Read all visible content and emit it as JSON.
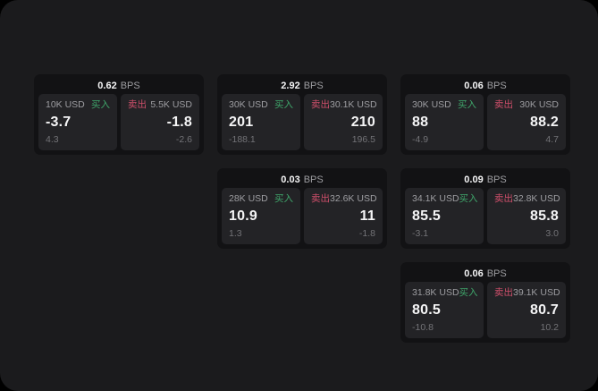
{
  "colors": {
    "outer_background": "#000000",
    "page_bg": "#1b1b1d",
    "card_bg": "#121214",
    "panel_bg": "#232326",
    "buy_green": "#3fa56a",
    "sell_red": "#cf4f6b",
    "text_primary": "#f5f5f6",
    "text_secondary": "#9d9da1",
    "text_tertiary": "#737377"
  },
  "labels": {
    "bps_suffix": "BPS",
    "buy": "买入",
    "sell": "卖出"
  },
  "cards": [
    {
      "bps": "0.62",
      "grid": {
        "row": 1,
        "col": 1
      },
      "buy": {
        "notional": "10K USD",
        "value": "-3.7",
        "delta": "4.3"
      },
      "sell": {
        "notional": "5.5K USD",
        "value": "-1.8",
        "delta": "-2.6"
      }
    },
    {
      "bps": "2.92",
      "grid": {
        "row": 1,
        "col": 2
      },
      "buy": {
        "notional": "30K USD",
        "value": "201",
        "delta": "-188.1"
      },
      "sell": {
        "notional": "30.1K USD",
        "value": "210",
        "delta": "196.5"
      }
    },
    {
      "bps": "0.06",
      "grid": {
        "row": 1,
        "col": 3
      },
      "buy": {
        "notional": "30K USD",
        "value": "88",
        "delta": "-4.9"
      },
      "sell": {
        "notional": "30K USD",
        "value": "88.2",
        "delta": "4.7"
      }
    },
    {
      "bps": "0.03",
      "grid": {
        "row": 2,
        "col": 2
      },
      "buy": {
        "notional": "28K USD",
        "value": "10.9",
        "delta": "1.3"
      },
      "sell": {
        "notional": "32.6K USD",
        "value": "11",
        "delta": "-1.8"
      }
    },
    {
      "bps": "0.09",
      "grid": {
        "row": 2,
        "col": 3
      },
      "buy": {
        "notional": "34.1K USD",
        "value": "85.5",
        "delta": "-3.1"
      },
      "sell": {
        "notional": "32.8K USD",
        "value": "85.8",
        "delta": "3.0"
      }
    },
    {
      "bps": "0.06",
      "grid": {
        "row": 3,
        "col": 3
      },
      "buy": {
        "notional": "31.8K USD",
        "value": "80.5",
        "delta": "-10.8"
      },
      "sell": {
        "notional": "39.1K USD",
        "value": "80.7",
        "delta": "10.2"
      }
    }
  ]
}
